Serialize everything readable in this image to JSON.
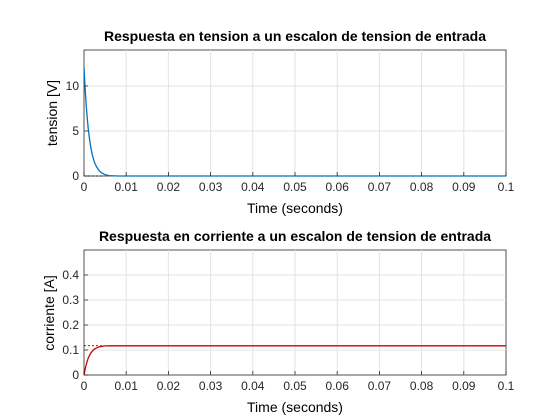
{
  "figure": {
    "background": "#ffffff"
  },
  "chart_data": [
    {
      "type": "line",
      "title": "Respuesta en tension a un escalon de tension de entrada",
      "xlabel": "Time (seconds)",
      "ylabel": "tension [V]",
      "xlim": [
        0,
        0.1
      ],
      "ylim": [
        0,
        14
      ],
      "xticks": [
        "0",
        "0.01",
        "0.02",
        "0.03",
        "0.04",
        "0.05",
        "0.06",
        "0.07",
        "0.08",
        "0.09",
        "0.1"
      ],
      "yticks": [
        "0",
        "5",
        "10"
      ],
      "ytick_values": [
        0,
        5,
        10
      ],
      "grid": true,
      "series": [
        {
          "color": "#0072bd",
          "x": [
            0,
            0.00025,
            0.0005,
            0.00075,
            0.001,
            0.00125,
            0.0015,
            0.00175,
            0.002,
            0.0025,
            0.003,
            0.0035,
            0.004,
            0.005,
            0.006,
            0.008,
            0.1
          ],
          "y": [
            12.0,
            9.8,
            8.0,
            6.5,
            5.3,
            4.3,
            3.5,
            2.85,
            2.3,
            1.5,
            1.0,
            0.65,
            0.4,
            0.15,
            0.05,
            0.0,
            0.0
          ]
        }
      ],
      "reference_line": {
        "style": "dotted",
        "x": [
          0,
          0.0045
        ],
        "y": [
          0,
          0
        ]
      }
    },
    {
      "type": "line",
      "title": "Respuesta en corriente a un escalon de tension de entrada",
      "xlabel": "Time (seconds)",
      "ylabel": "corriente [A]",
      "xlim": [
        0,
        0.1
      ],
      "ylim": [
        0,
        0.5
      ],
      "xticks": [
        "0",
        "0.01",
        "0.02",
        "0.03",
        "0.04",
        "0.05",
        "0.06",
        "0.07",
        "0.08",
        "0.09",
        "0.1"
      ],
      "yticks": [
        "0",
        "0.1",
        "0.2",
        "0.3",
        "0.4"
      ],
      "ytick_values": [
        0,
        0.1,
        0.2,
        0.3,
        0.4
      ],
      "grid": true,
      "series": [
        {
          "color": "#d00000",
          "x": [
            0,
            0.00025,
            0.0005,
            0.00075,
            0.001,
            0.00125,
            0.0015,
            0.002,
            0.0025,
            0.003,
            0.0035,
            0.004,
            0.005,
            0.006,
            0.1
          ],
          "y": [
            0,
            0.022,
            0.04,
            0.055,
            0.067,
            0.077,
            0.085,
            0.096,
            0.104,
            0.109,
            0.112,
            0.114,
            0.1165,
            0.117,
            0.117
          ]
        }
      ],
      "reference_line": {
        "style": "dotted",
        "x": [
          0,
          0.0045
        ],
        "y": [
          0.117,
          0.117
        ]
      }
    }
  ]
}
